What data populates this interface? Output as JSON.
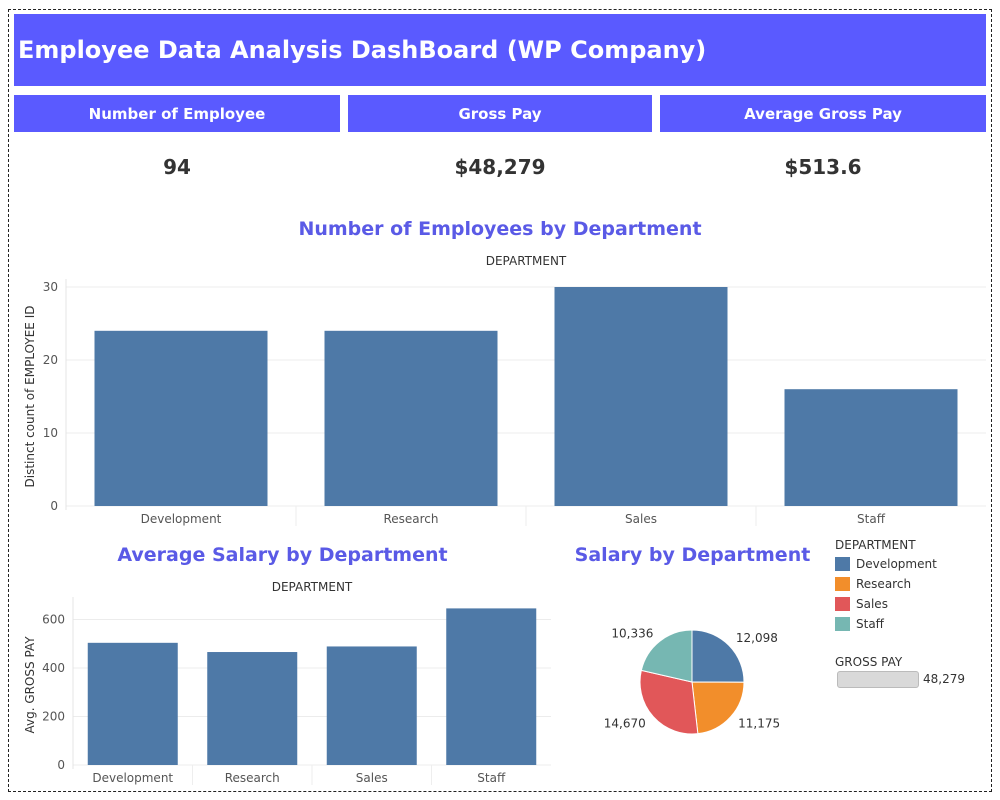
{
  "dashboard": {
    "title": "Employee Data Analysis DashBoard (WP Company)"
  },
  "kpis": [
    {
      "label": "Number of Employee",
      "value": "94"
    },
    {
      "label": "Gross Pay",
      "value": "$48,279"
    },
    {
      "label": "Average Gross Pay",
      "value": "$513.6"
    }
  ],
  "colors": {
    "header_bg": "#5a5aff",
    "chart_title": "#5a5ae6",
    "bar": "#4e79a7"
  },
  "chart_data": [
    {
      "type": "bar",
      "title": "Number of Employees by Department",
      "xlabel": "DEPARTMENT",
      "ylabel": "Distinct count of EMPLOYEE ID",
      "categories": [
        "Development",
        "Research",
        "Sales",
        "Staff"
      ],
      "values": [
        24,
        24,
        30,
        16
      ],
      "ylim": [
        0,
        30
      ],
      "yticks": [
        0,
        10,
        20,
        30
      ],
      "grid": true
    },
    {
      "type": "bar",
      "title": "Average Salary by Department",
      "xlabel": "DEPARTMENT",
      "ylabel": "Avg. GROSS PAY",
      "categories": [
        "Development",
        "Research",
        "Sales",
        "Staff"
      ],
      "values": [
        504,
        466,
        489,
        646
      ],
      "ylim": [
        0,
        660
      ],
      "yticks": [
        0,
        200,
        400,
        600
      ],
      "grid": true
    },
    {
      "type": "pie",
      "title": "Salary by Department",
      "categories": [
        "Development",
        "Research",
        "Sales",
        "Staff"
      ],
      "values": [
        12098,
        11175,
        14670,
        10336
      ],
      "labels": [
        "12,098",
        "11,175",
        "14,670",
        "10,336"
      ],
      "colors": [
        "#4e79a7",
        "#f28e2b",
        "#e15759",
        "#76b7b2"
      ]
    }
  ],
  "legend": {
    "title": "DEPARTMENT",
    "items": [
      {
        "label": "Development",
        "color": "#4e79a7"
      },
      {
        "label": "Research",
        "color": "#f28e2b"
      },
      {
        "label": "Sales",
        "color": "#e15759"
      },
      {
        "label": "Staff",
        "color": "#76b7b2"
      }
    ]
  },
  "gross_pay_filter": {
    "title": "GROSS PAY",
    "value": "48,279"
  }
}
